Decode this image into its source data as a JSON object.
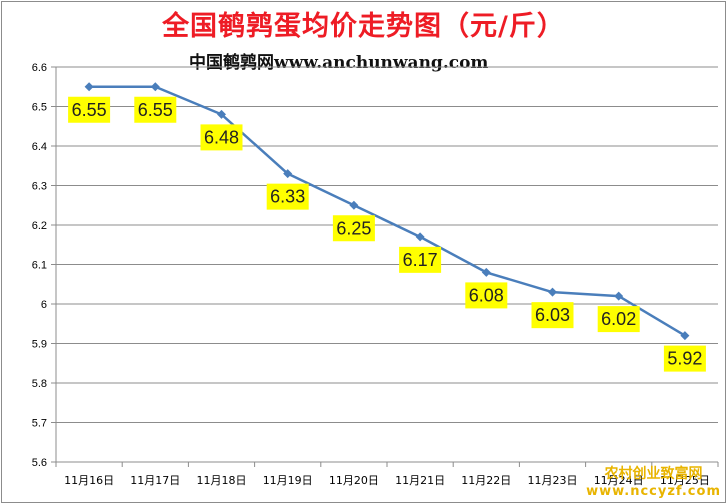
{
  "header": {
    "title": "全国鹌鹑蛋均价走势图（元/斤）",
    "subtitle": "中国鹌鹑网www.anchunwang.com"
  },
  "watermark": {
    "line1": "农村创业致富网",
    "line2": "www.nccyzf.com"
  },
  "colors": {
    "title": "#ee1c25",
    "line": "#4a7ebb",
    "label_bg": "#ffff00",
    "grid": "#8c8c8c",
    "watermark": "#e8b400"
  },
  "chart_data": {
    "type": "line",
    "title": "全国鹌鹑蛋均价走势图（元/斤）",
    "xlabel": "",
    "ylabel": "",
    "categories": [
      "11月16日",
      "11月17日",
      "11月18日",
      "11月19日",
      "11月20日",
      "11月21日",
      "11月22日",
      "11月23日",
      "11月24日",
      "11月25日"
    ],
    "series": [
      {
        "values": [
          6.55,
          6.55,
          6.48,
          6.33,
          6.25,
          6.17,
          6.08,
          6.03,
          6.02,
          5.92
        ]
      }
    ],
    "data_labels": [
      "6.55",
      "6.55",
      "6.48",
      "6.33",
      "6.25",
      "6.17",
      "6.08",
      "6.03",
      "6.02",
      "5.92"
    ],
    "yticks": [
      "5.6",
      "5.7",
      "5.8",
      "5.9",
      "6",
      "6.1",
      "6.2",
      "6.3",
      "6.4",
      "6.5",
      "6.6"
    ],
    "ylim": [
      5.6,
      6.6
    ],
    "grid": true,
    "legend": "none"
  }
}
